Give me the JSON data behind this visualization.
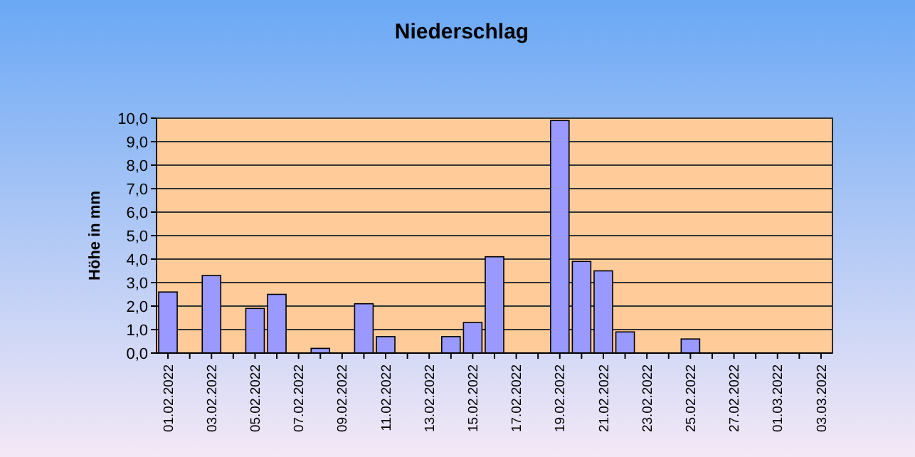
{
  "chart_data": {
    "type": "bar",
    "title": "Niederschlag",
    "ylabel": "Höhe in mm",
    "categories": [
      "01.02.2022",
      null,
      "03.02.2022",
      null,
      "05.02.2022",
      null,
      "07.02.2022",
      null,
      "09.02.2022",
      null,
      "11.02.2022",
      null,
      "13.02.2022",
      null,
      "15.02.2022",
      null,
      "17.02.2022",
      null,
      "19.02.2022",
      null,
      "21.02.2022",
      null,
      "23.02.2022",
      null,
      "25.02.2022",
      null,
      "27.02.2022",
      null,
      "01.03.2022",
      null,
      "03.03.2022"
    ],
    "values": [
      2.6,
      0,
      3.3,
      0,
      1.9,
      2.5,
      0,
      0.2,
      0,
      2.1,
      0.7,
      0,
      0,
      0.7,
      1.3,
      4.1,
      0,
      0,
      9.9,
      3.9,
      3.5,
      0.9,
      0,
      0,
      0.6,
      0,
      0,
      0,
      0,
      0,
      0
    ],
    "color": "#9999ff",
    "ylim": [
      0,
      10
    ],
    "yticks": [
      {
        "value": 0,
        "label": "0,0"
      },
      {
        "value": 1,
        "label": "1,0"
      },
      {
        "value": 2,
        "label": "2,0"
      },
      {
        "value": 3,
        "label": "3,0"
      },
      {
        "value": 4,
        "label": "4,0"
      },
      {
        "value": 5,
        "label": "5,0"
      },
      {
        "value": 6,
        "label": "6,0"
      },
      {
        "value": 7,
        "label": "7,0"
      },
      {
        "value": 8,
        "label": "8,0"
      },
      {
        "value": 9,
        "label": "9,0"
      },
      {
        "value": 10,
        "label": "10,0"
      }
    ],
    "grid": "y"
  }
}
